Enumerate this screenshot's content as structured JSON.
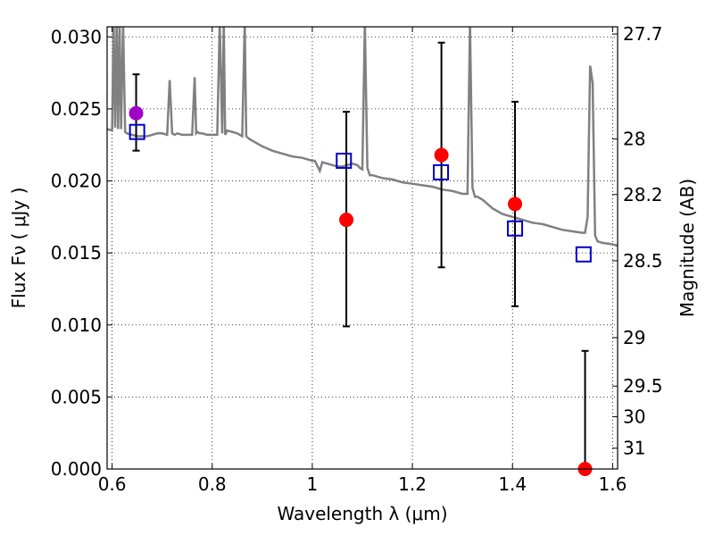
{
  "chart_data": {
    "type": "scatter",
    "title": "",
    "xlabel": "Wavelength  λ (μm)",
    "ylabel": "Flux  Fν  ( μJy )",
    "ylabel_right": "Magnitude (AB)",
    "xlim": [
      0.59,
      1.61
    ],
    "ylim": [
      0.0,
      0.0307
    ],
    "x_ticks": [
      0.6,
      0.8,
      1.0,
      1.2,
      1.4,
      1.6
    ],
    "x_tick_labels": [
      "0.6",
      "0.8",
      "1",
      "1.2",
      "1.4",
      "1.6"
    ],
    "y_ticks": [
      0.0,
      0.005,
      0.01,
      0.015,
      0.02,
      0.025,
      0.03
    ],
    "y_tick_labels": [
      "0.000",
      "0.005",
      "0.010",
      "0.015",
      "0.020",
      "0.025",
      "0.030"
    ],
    "right_ticks": [
      27.7,
      28,
      28.2,
      28.5,
      29,
      29.5,
      30,
      31
    ],
    "right_tick_labels": [
      "27.7",
      "28",
      "28.2",
      "28.5",
      "29",
      "29.5",
      "30",
      "31"
    ],
    "grid": true,
    "colors": {
      "model": "#808080",
      "observed": "#ff0000",
      "observed_first": "#a000c8",
      "model_flux": "#0000cc",
      "errorbar": "#000000"
    },
    "model_spectrum": {
      "x": [
        0.59,
        0.6,
        0.603,
        0.606,
        0.609,
        0.612,
        0.615,
        0.618,
        0.622,
        0.626,
        0.63,
        0.64,
        0.65,
        0.66,
        0.67,
        0.68,
        0.69,
        0.7,
        0.71,
        0.715,
        0.72,
        0.725,
        0.73,
        0.74,
        0.75,
        0.76,
        0.765,
        0.768,
        0.771,
        0.775,
        0.78,
        0.79,
        0.8,
        0.81,
        0.815,
        0.82,
        0.823,
        0.826,
        0.83,
        0.84,
        0.85,
        0.86,
        0.865,
        0.868,
        0.871,
        0.875,
        0.88,
        0.9,
        0.92,
        0.94,
        0.96,
        0.98,
        1.0,
        1.005,
        1.015,
        1.02,
        1.03,
        1.04,
        1.05,
        1.06,
        1.07,
        1.08,
        1.09,
        1.095,
        1.1,
        1.105,
        1.11,
        1.115,
        1.12,
        1.14,
        1.16,
        1.18,
        1.2,
        1.22,
        1.24,
        1.26,
        1.28,
        1.3,
        1.31,
        1.315,
        1.32,
        1.325,
        1.33,
        1.335,
        1.34,
        1.35,
        1.36,
        1.38,
        1.4,
        1.42,
        1.44,
        1.46,
        1.48,
        1.5,
        1.52,
        1.54,
        1.545,
        1.55,
        1.555,
        1.56,
        1.565,
        1.57,
        1.58,
        1.6,
        1.61
      ],
      "y": [
        0.0236,
        0.0235,
        0.031,
        0.0237,
        0.031,
        0.0236,
        0.031,
        0.0236,
        0.031,
        0.0234,
        0.0233,
        0.0232,
        0.0231,
        0.0231,
        0.0231,
        0.0232,
        0.0233,
        0.0233,
        0.0232,
        0.027,
        0.0233,
        0.0232,
        0.0233,
        0.0232,
        0.0232,
        0.0232,
        0.0272,
        0.0233,
        0.0234,
        0.0233,
        0.0233,
        0.0232,
        0.0232,
        0.0232,
        0.031,
        0.0233,
        0.031,
        0.0232,
        0.0235,
        0.0234,
        0.0233,
        0.0231,
        0.031,
        0.0231,
        0.023,
        0.0229,
        0.0228,
        0.0224,
        0.0221,
        0.0219,
        0.0217,
        0.0216,
        0.0214,
        0.0214,
        0.0207,
        0.0213,
        0.0212,
        0.0211,
        0.021,
        0.021,
        0.0211,
        0.0212,
        0.0211,
        0.0209,
        0.0208,
        0.031,
        0.0209,
        0.0204,
        0.0204,
        0.0202,
        0.0201,
        0.0199,
        0.0198,
        0.0197,
        0.0196,
        0.0194,
        0.0193,
        0.0191,
        0.0191,
        0.031,
        0.0195,
        0.0189,
        0.0189,
        0.0188,
        0.0187,
        0.0184,
        0.0181,
        0.0177,
        0.0175,
        0.0173,
        0.0171,
        0.017,
        0.0168,
        0.0166,
        0.0165,
        0.0164,
        0.0164,
        0.0175,
        0.028,
        0.0268,
        0.0162,
        0.0158,
        0.0157,
        0.0156,
        0.0155
      ]
    },
    "observed": {
      "x": [
        0.648,
        1.068,
        1.258,
        1.405,
        1.545
      ],
      "y": [
        0.0247,
        0.0173,
        0.0218,
        0.0184,
        0.0
      ],
      "err_low": [
        0.0221,
        0.0099,
        0.014,
        0.0113,
        0.0
      ],
      "err_high": [
        0.0274,
        0.0248,
        0.0296,
        0.0255,
        0.0082
      ]
    },
    "model_flux": {
      "x": [
        0.65,
        1.063,
        1.257,
        1.405,
        1.542
      ],
      "y": [
        0.0234,
        0.0214,
        0.0206,
        0.0167,
        0.0149
      ]
    }
  }
}
